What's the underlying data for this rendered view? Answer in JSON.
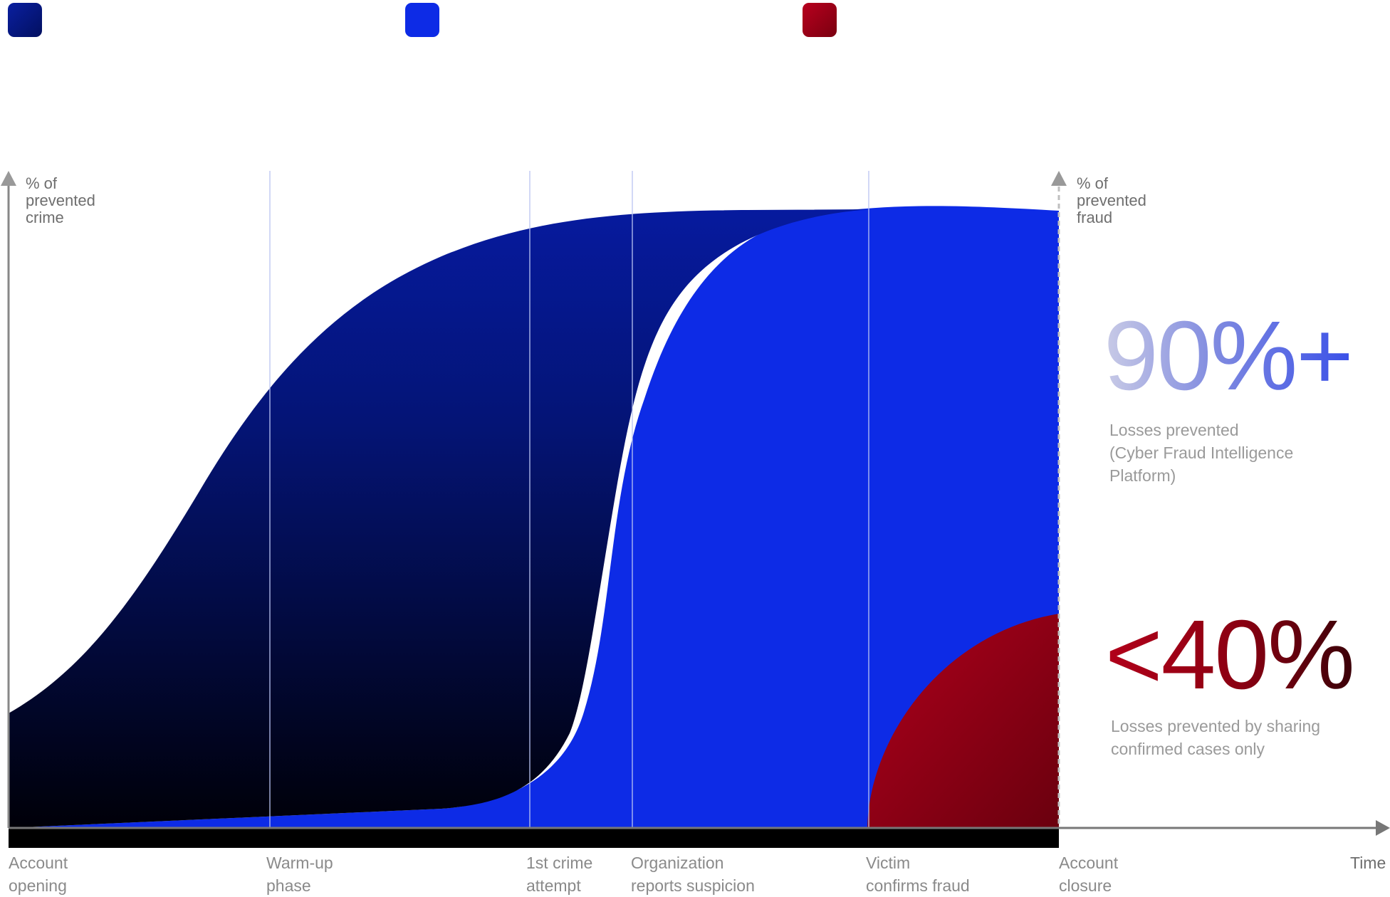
{
  "colors": {
    "dark_series": "#041480",
    "blue_series": "#0d2be6",
    "red_series": "#a0001a",
    "axis": "#888888",
    "baseline": "#000000"
  },
  "legend": [
    {
      "color": "#041480",
      "icon": "square-swatch",
      "label": ""
    },
    {
      "color": "#0d2be6",
      "icon": "square-swatch",
      "label": ""
    },
    {
      "color": "#a0001a",
      "icon": "square-swatch",
      "label": ""
    }
  ],
  "chart_data": {
    "type": "area",
    "title": "",
    "ylabel_left": "% of\nprevented\ncrime",
    "ylabel_right": "% of\nprevented\nfraud",
    "xlabel": "Time",
    "grid": false,
    "categories": [
      "Account\nopening",
      "Warm-up\nphase",
      "1st crime\nattempt",
      "Organization\nreports suspicion",
      "Victim\nconfirms fraud",
      "Account\nclosure"
    ],
    "x": [
      0,
      1,
      2,
      3,
      4,
      5
    ],
    "ylim": [
      0,
      100
    ],
    "series": [
      {
        "color": "#041480",
        "values": [
          18,
          70,
          94,
          96,
          96,
          96
        ]
      },
      {
        "color": "#0d2be6",
        "values": [
          0,
          1,
          3,
          62,
          96,
          96
        ]
      },
      {
        "color": "#a0001a",
        "values": [
          0,
          0,
          0,
          0,
          0,
          34
        ]
      }
    ]
  },
  "stats": [
    {
      "value": "90%+",
      "caption": "Losses prevented\n(Cyber Fraud Intelligence\nPlatform)"
    },
    {
      "value": "<40%",
      "caption": "Losses prevented by sharing\nconfirmed cases only"
    }
  ]
}
